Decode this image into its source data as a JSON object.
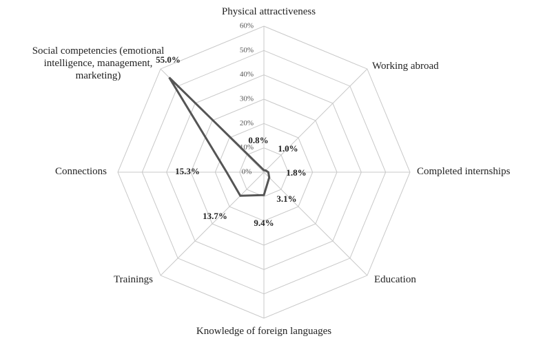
{
  "chart_data": {
    "type": "radar",
    "categories": [
      "Physical attractiveness",
      "Working abroad",
      "Completed internships",
      "Education",
      "Knowledge of foreign languages",
      "Trainings",
      "Connections",
      "Social competencies (emotional intelligence, management, marketing)"
    ],
    "values": [
      0.8,
      1.0,
      1.8,
      3.1,
      9.4,
      13.7,
      15.3,
      55.0
    ],
    "value_labels": [
      "0.8%",
      "1.0%",
      "1.8%",
      "3.1%",
      "9.4%",
      "13.7%",
      "15.3%",
      "55.0%"
    ],
    "color": "#555555",
    "ylim": [
      0,
      60
    ],
    "yticks": [
      {
        "value": 0,
        "label": "0%"
      },
      {
        "value": 10,
        "label": "10%"
      },
      {
        "value": 20,
        "label": "20%"
      },
      {
        "value": 30,
        "label": "30%"
      },
      {
        "value": 40,
        "label": "40%"
      },
      {
        "value": 50,
        "label": "50%"
      },
      {
        "value": 60,
        "label": "60%"
      }
    ],
    "grid": true
  }
}
